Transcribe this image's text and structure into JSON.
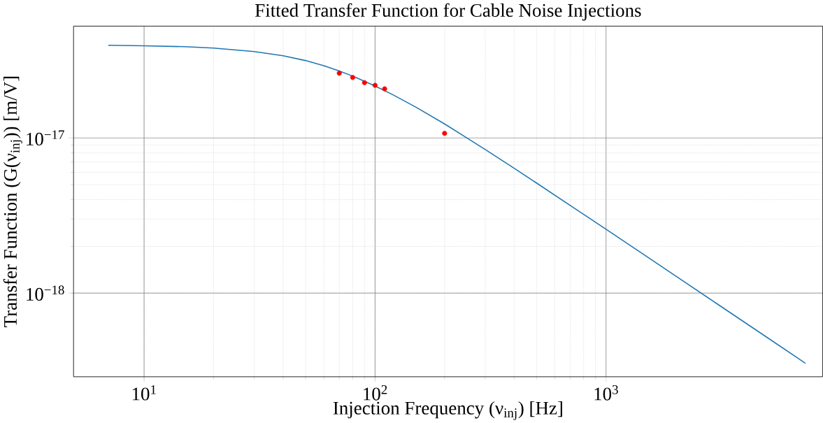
{
  "chart_data": {
    "type": "line",
    "title": "Fitted Transfer Function for Cable Noise Injections",
    "xlabel": "Injection Frequency (ν$_{inj}$) [Hz]",
    "ylabel": "Transfer Function (G(ν$_{inj}$)) [m/V]",
    "log": "xy",
    "grid": true,
    "xlim": [
      4.95,
      8670
    ],
    "ylim": [
      2.89e-19,
      5.25e-17
    ],
    "xticks": [
      {
        "value": 10,
        "label": "10$^{1}$"
      },
      {
        "value": 100,
        "label": "10$^{2}$"
      },
      {
        "value": 1000,
        "label": "10$^{3}$"
      }
    ],
    "yticks": [
      {
        "value": 1e-18,
        "label": "10$^{−18}$"
      },
      {
        "value": 1e-17,
        "label": "10$^{−17}$"
      }
    ],
    "series": [
      {
        "color": "#1f77b4",
        "marker": "none",
        "x": [
          7,
          10,
          15,
          20,
          30,
          40,
          50,
          60,
          70,
          80,
          100,
          120,
          150,
          200,
          250,
          300,
          400,
          500,
          700,
          1000,
          1500,
          2000,
          3000,
          5000,
          7300
        ],
        "values": [
          3.95e-17,
          3.92e-17,
          3.87e-17,
          3.79e-17,
          3.6e-17,
          3.38e-17,
          3.15e-17,
          2.92e-17,
          2.7e-17,
          2.5e-17,
          2.16e-17,
          1.89e-17,
          1.58e-17,
          1.23e-17,
          9.99e-18,
          8.41e-18,
          6.37e-18,
          5.12e-18,
          3.67e-18,
          2.58e-18,
          1.72e-18,
          1.29e-18,
          8.6e-19,
          5.16e-19,
          3.53e-19
        ]
      },
      {
        "type": "scatter",
        "color": "#ff0000",
        "marker": "circle",
        "x": [
          70,
          80,
          90,
          100,
          110,
          200
        ],
        "values": [
          2.61e-17,
          2.45e-17,
          2.27e-17,
          2.18e-17,
          2.07e-17,
          1.07e-17
        ]
      }
    ]
  }
}
